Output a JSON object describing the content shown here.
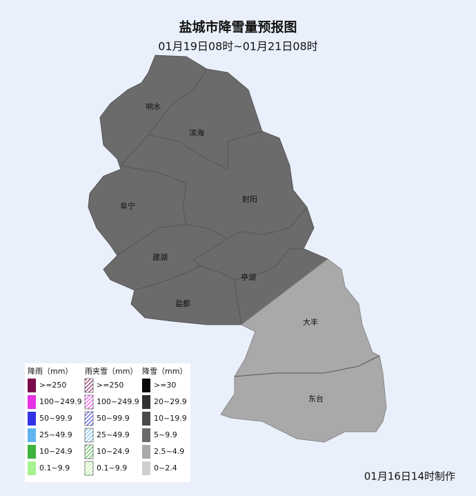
{
  "title": "盐城市降雪量预报图",
  "subtitle": "01月19日08时~01月21日08时",
  "regions": [
    {
      "name": "响水"
    },
    {
      "name": "滨海"
    },
    {
      "name": "射阳"
    },
    {
      "name": "阜宁"
    },
    {
      "name": "建湖"
    },
    {
      "name": "亭湖"
    },
    {
      "name": "盐都"
    },
    {
      "name": "大丰"
    },
    {
      "name": "东台"
    }
  ],
  "legend": [
    {
      "title": "降雨（mm）",
      "style": "solid",
      "items": [
        {
          "label": ">=250",
          "color": "#7a0a4a"
        },
        {
          "label": "100~249.9",
          "color": "#e632e6"
        },
        {
          "label": "50~99.9",
          "color": "#3232e6"
        },
        {
          "label": "25~49.9",
          "color": "#62b4f0"
        },
        {
          "label": "10~24.9",
          "color": "#3cb43c"
        },
        {
          "label": "0.1~9.9",
          "color": "#a6f28f"
        }
      ]
    },
    {
      "title": "雨夹雪（mm）",
      "style": "hatched",
      "items": [
        {
          "label": ">=250",
          "color": "#7a0a4a"
        },
        {
          "label": "100~249.9",
          "color": "#e632e6"
        },
        {
          "label": "50~99.9",
          "color": "#3232e6"
        },
        {
          "label": "25~49.9",
          "color": "#62b4f0"
        },
        {
          "label": "10~24.9",
          "color": "#3cb43c"
        },
        {
          "label": "0.1~9.9",
          "color": "#a6f28f"
        }
      ]
    },
    {
      "title": "降雪（mm）",
      "style": "solid",
      "items": [
        {
          "label": ">=30",
          "color": "#0a0a0a"
        },
        {
          "label": "20~29.9",
          "color": "#303030"
        },
        {
          "label": "10~19.9",
          "color": "#4a4a4a"
        },
        {
          "label": "5~9.9",
          "color": "#6b6b6b"
        },
        {
          "label": "2.5~4.9",
          "color": "#a9a9a9"
        },
        {
          "label": "0~2.4",
          "color": "#cfcfcf"
        }
      ]
    }
  ],
  "footer": "01月16日14时制作"
}
